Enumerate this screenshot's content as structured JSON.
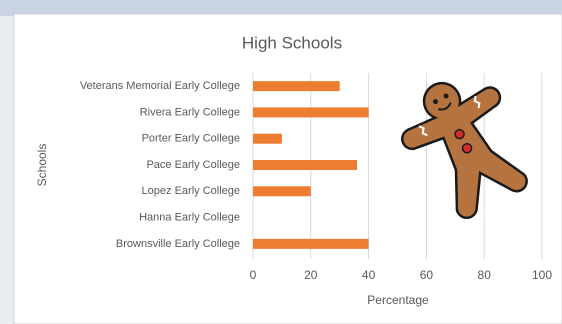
{
  "chart_data": {
    "type": "bar",
    "orientation": "horizontal",
    "title": "High Schools",
    "x_label": "Percentage",
    "y_label": "Schools",
    "categories": [
      "Veterans Memorial Early College",
      "Rivera Early College",
      "Porter Early College",
      "Pace Early College",
      "Lopez Early College",
      "Hanna Early College",
      "Brownsville Early College"
    ],
    "values": [
      30,
      40,
      10,
      36,
      20,
      0,
      40
    ],
    "color": "#ed7d31",
    "xlim": [
      0,
      100
    ],
    "xticks": [
      0,
      20,
      40,
      60,
      80,
      100
    ],
    "grid": true
  }
}
